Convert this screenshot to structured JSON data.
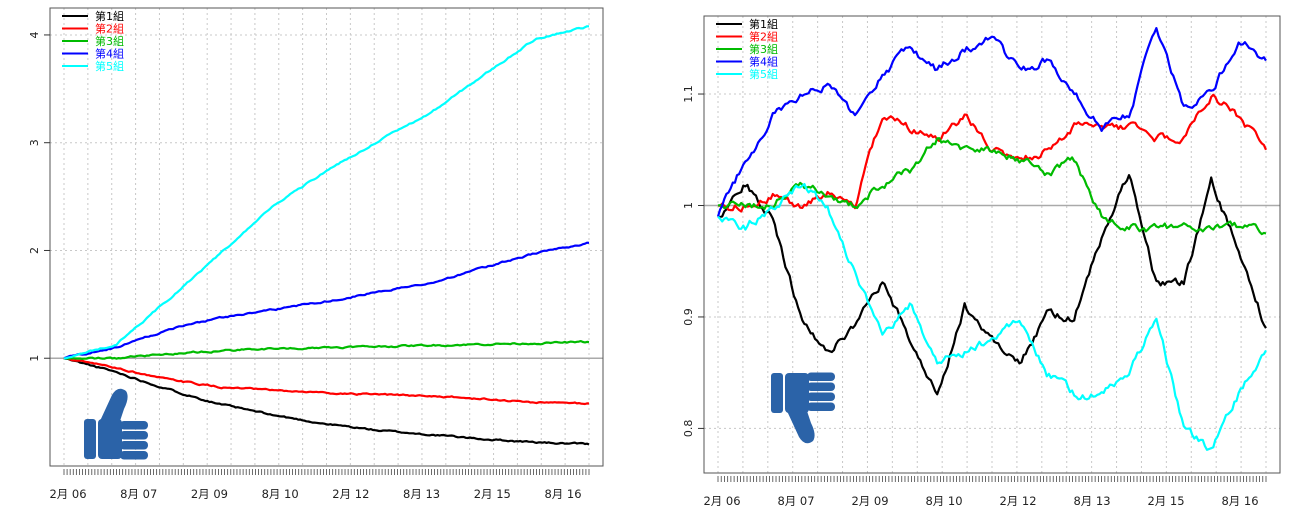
{
  "chart_data": [
    {
      "type": "line",
      "title": "",
      "xlabel": "",
      "ylabel": "",
      "ylim": [
        0.0,
        4.25
      ],
      "y_ticks": [
        1,
        2,
        3,
        4
      ],
      "x_tick_labels": [
        "2月 06",
        "8月 07",
        "2月 09",
        "8月 10",
        "2月 12",
        "8月 13",
        "2月 15",
        "8月 16"
      ],
      "reference_line": 1.0,
      "grid": true,
      "legend_position": "top-left",
      "x": [
        0,
        10,
        20,
        30,
        40,
        50,
        60,
        70,
        80,
        90,
        100
      ],
      "series": [
        {
          "name": "第1組",
          "color": "#000000",
          "values": [
            1.0,
            0.87,
            0.71,
            0.57,
            0.47,
            0.39,
            0.33,
            0.29,
            0.25,
            0.22,
            0.2
          ]
        },
        {
          "name": "第2組",
          "color": "#ff0000",
          "values": [
            1.0,
            0.91,
            0.8,
            0.73,
            0.7,
            0.68,
            0.66,
            0.65,
            0.62,
            0.59,
            0.58
          ]
        },
        {
          "name": "第3組",
          "color": "#00bb00",
          "values": [
            1.0,
            1.0,
            1.04,
            1.07,
            1.09,
            1.1,
            1.11,
            1.12,
            1.13,
            1.14,
            1.15
          ]
        },
        {
          "name": "第4組",
          "color": "#0000ff",
          "values": [
            1.0,
            1.1,
            1.27,
            1.38,
            1.45,
            1.53,
            1.62,
            1.7,
            1.84,
            1.98,
            2.07
          ]
        },
        {
          "name": "第5組",
          "color": "#00ffff",
          "values": [
            1.0,
            1.13,
            1.55,
            1.98,
            2.42,
            2.74,
            3.02,
            3.28,
            3.63,
            3.97,
            4.08
          ]
        }
      ],
      "icon": "thumbs-up-icon"
    },
    {
      "type": "line",
      "title": "",
      "xlabel": "",
      "ylabel": "",
      "ylim": [
        0.76,
        1.17
      ],
      "y_ticks": [
        0.8,
        0.9,
        1.0,
        1.1
      ],
      "x_tick_labels": [
        "2月 06",
        "8月 07",
        "2月 09",
        "8月 10",
        "2月 12",
        "8月 13",
        "2月 15",
        "8月 16"
      ],
      "reference_line": 1.0,
      "grid": true,
      "legend_position": "top-left",
      "x": [
        0,
        5,
        10,
        15,
        20,
        25,
        30,
        35,
        40,
        45,
        50,
        55,
        60,
        65,
        70,
        75,
        80,
        85,
        90,
        95,
        100
      ],
      "series": [
        {
          "name": "第1組",
          "color": "#000000",
          "values": [
            0.99,
            1.02,
            0.99,
            0.9,
            0.87,
            0.89,
            0.93,
            0.88,
            0.83,
            0.91,
            0.88,
            0.86,
            0.9,
            0.9,
            0.97,
            1.03,
            0.93,
            0.93,
            1.02,
            0.96,
            0.89
          ]
        },
        {
          "name": "第2組",
          "color": "#ff0000",
          "values": [
            1.0,
            1.0,
            1.01,
            1.0,
            1.01,
            1.0,
            1.08,
            1.07,
            1.06,
            1.08,
            1.05,
            1.04,
            1.05,
            1.07,
            1.07,
            1.07,
            1.06,
            1.06,
            1.1,
            1.08,
            1.05
          ]
        },
        {
          "name": "第3組",
          "color": "#00bb00",
          "values": [
            1.0,
            1.0,
            1.0,
            1.02,
            1.01,
            1.0,
            1.02,
            1.03,
            1.06,
            1.05,
            1.05,
            1.04,
            1.03,
            1.04,
            0.99,
            0.98,
            0.98,
            0.98,
            0.98,
            0.98,
            0.975
          ]
        },
        {
          "name": "第4組",
          "color": "#0000ff",
          "values": [
            0.99,
            1.04,
            1.08,
            1.1,
            1.11,
            1.08,
            1.12,
            1.14,
            1.12,
            1.14,
            1.15,
            1.12,
            1.13,
            1.1,
            1.07,
            1.08,
            1.16,
            1.09,
            1.1,
            1.15,
            1.13
          ]
        },
        {
          "name": "第5組",
          "color": "#00ffff",
          "values": [
            0.99,
            0.98,
            1.0,
            1.02,
            1.0,
            0.94,
            0.88,
            0.91,
            0.86,
            0.87,
            0.88,
            0.9,
            0.85,
            0.83,
            0.83,
            0.85,
            0.9,
            0.8,
            0.78,
            0.83,
            0.87
          ]
        }
      ],
      "icon": "thumbs-down-icon"
    }
  ]
}
